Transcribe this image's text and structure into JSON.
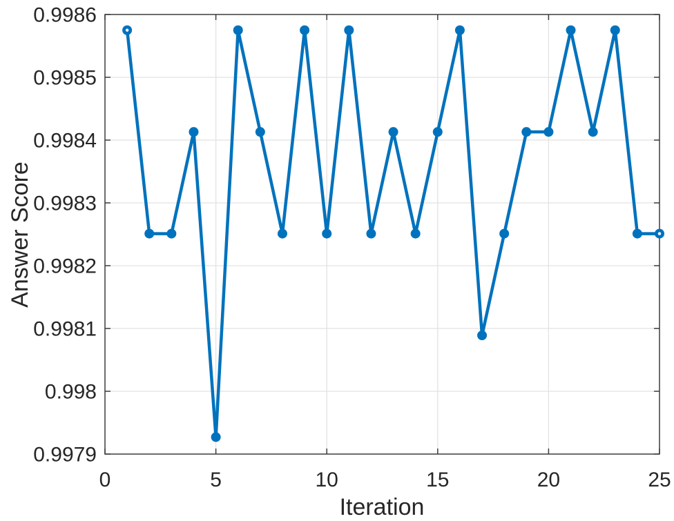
{
  "figure": {
    "background_color": "#ffffff"
  },
  "chart_data": {
    "type": "line",
    "title": "",
    "xlabel": "Iteration",
    "ylabel": "Answer Score",
    "x": [
      1,
      2,
      3,
      4,
      5,
      6,
      7,
      8,
      9,
      10,
      11,
      12,
      13,
      14,
      15,
      16,
      17,
      18,
      19,
      20,
      21,
      22,
      23,
      24,
      25
    ],
    "y": [
      0.998575,
      0.998251,
      0.998251,
      0.998413,
      0.997927,
      0.998575,
      0.998413,
      0.998251,
      0.998575,
      0.998251,
      0.998575,
      0.998251,
      0.998413,
      0.998251,
      0.998413,
      0.998575,
      0.998089,
      0.998251,
      0.998413,
      0.998413,
      0.998575,
      0.998413,
      0.998575,
      0.998251,
      0.998251
    ],
    "xlim": [
      0,
      25
    ],
    "ylim": [
      0.9979,
      0.9986
    ],
    "xticks": [
      0,
      5,
      10,
      15,
      20,
      25
    ],
    "xtick_labels": [
      "0",
      "5",
      "10",
      "15",
      "20",
      "25"
    ],
    "yticks": [
      0.9979,
      0.998,
      0.9981,
      0.9982,
      0.9983,
      0.9984,
      0.9985,
      0.9986
    ],
    "ytick_labels": [
      "0.9979",
      "0.998",
      "0.9981",
      "0.9982",
      "0.9983",
      "0.9984",
      "0.9985",
      "0.9986"
    ],
    "grid": true,
    "legend": "none",
    "line_color": "#0072BD",
    "marker": "filled-circle",
    "endpoint_marker_center_color": "#ffffff",
    "grid_color": "#e2e2e2",
    "axis_color": "#3b3b3b",
    "text_color": "#262626"
  }
}
